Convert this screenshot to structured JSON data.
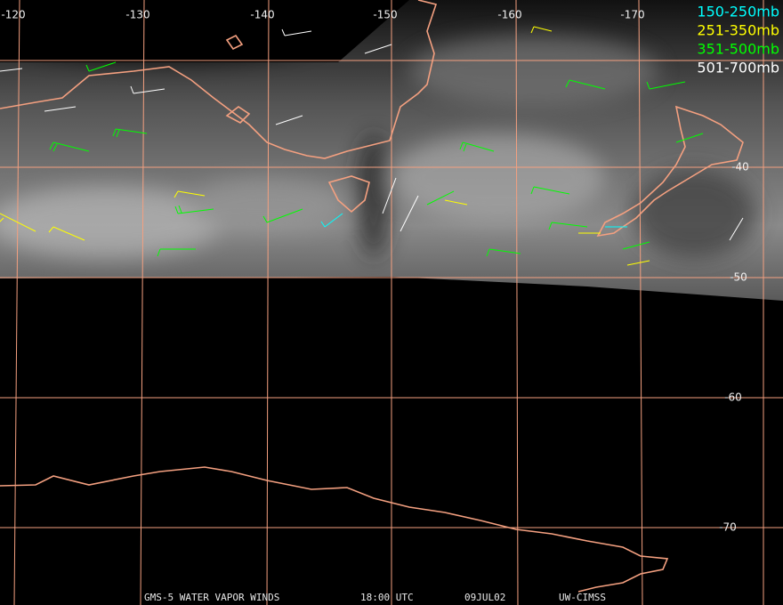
{
  "map": {
    "longitude_labels": [
      -120,
      -130,
      -140,
      -150,
      -160,
      -170
    ],
    "latitude_labels": [
      -40,
      -50,
      -60,
      -70
    ],
    "legend": [
      {
        "label": "150-250mb",
        "color": "#00ffff"
      },
      {
        "label": "251-350mb",
        "color": "#ffff00"
      },
      {
        "label": "351-500mb",
        "color": "#00ff00"
      },
      {
        "label": "501-700mb",
        "color": "#ffffff"
      }
    ],
    "footer": [
      "GMS-5 WATER VAPOR WINDS",
      "18:00 UTC",
      "09JUL02",
      "UW-CIMSS"
    ]
  }
}
